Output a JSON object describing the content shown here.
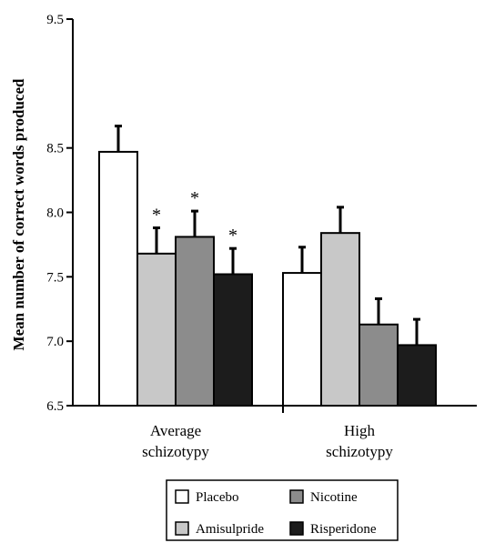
{
  "chart_data": {
    "type": "bar",
    "title": "",
    "xlabel": "",
    "ylabel": "Mean number of correct words produced",
    "ylim": [
      6.5,
      9.5
    ],
    "yticks": [
      "6.5",
      "7.0",
      "7.5",
      "8.0",
      "8.5",
      "9.5"
    ],
    "categories": [
      [
        "Average",
        "schizotypy"
      ],
      [
        "High",
        "schizotypy"
      ]
    ],
    "series": [
      {
        "name": "Placebo",
        "color": "#ffffff",
        "values": [
          8.47,
          7.53
        ],
        "errors": [
          0.2,
          0.2
        ],
        "significance": [
          "",
          ""
        ]
      },
      {
        "name": "Amisulpride",
        "color": "#c8c8c8",
        "values": [
          7.68,
          7.84
        ],
        "errors": [
          0.2,
          0.2
        ],
        "significance": [
          "*",
          ""
        ]
      },
      {
        "name": "Nicotine",
        "color": "#8c8c8c",
        "values": [
          7.81,
          7.13
        ],
        "errors": [
          0.2,
          0.2
        ],
        "significance": [
          "*",
          ""
        ]
      },
      {
        "name": "Risperidone",
        "color": "#1c1c1c",
        "values": [
          7.52,
          6.97
        ],
        "errors": [
          0.2,
          0.2
        ],
        "significance": [
          "*",
          ""
        ]
      }
    ],
    "grid": false,
    "legend": {
      "placement": "bottom",
      "rows": [
        [
          "Placebo",
          "Nicotine"
        ],
        [
          "Amisulpride",
          "Risperidone"
        ]
      ]
    }
  }
}
